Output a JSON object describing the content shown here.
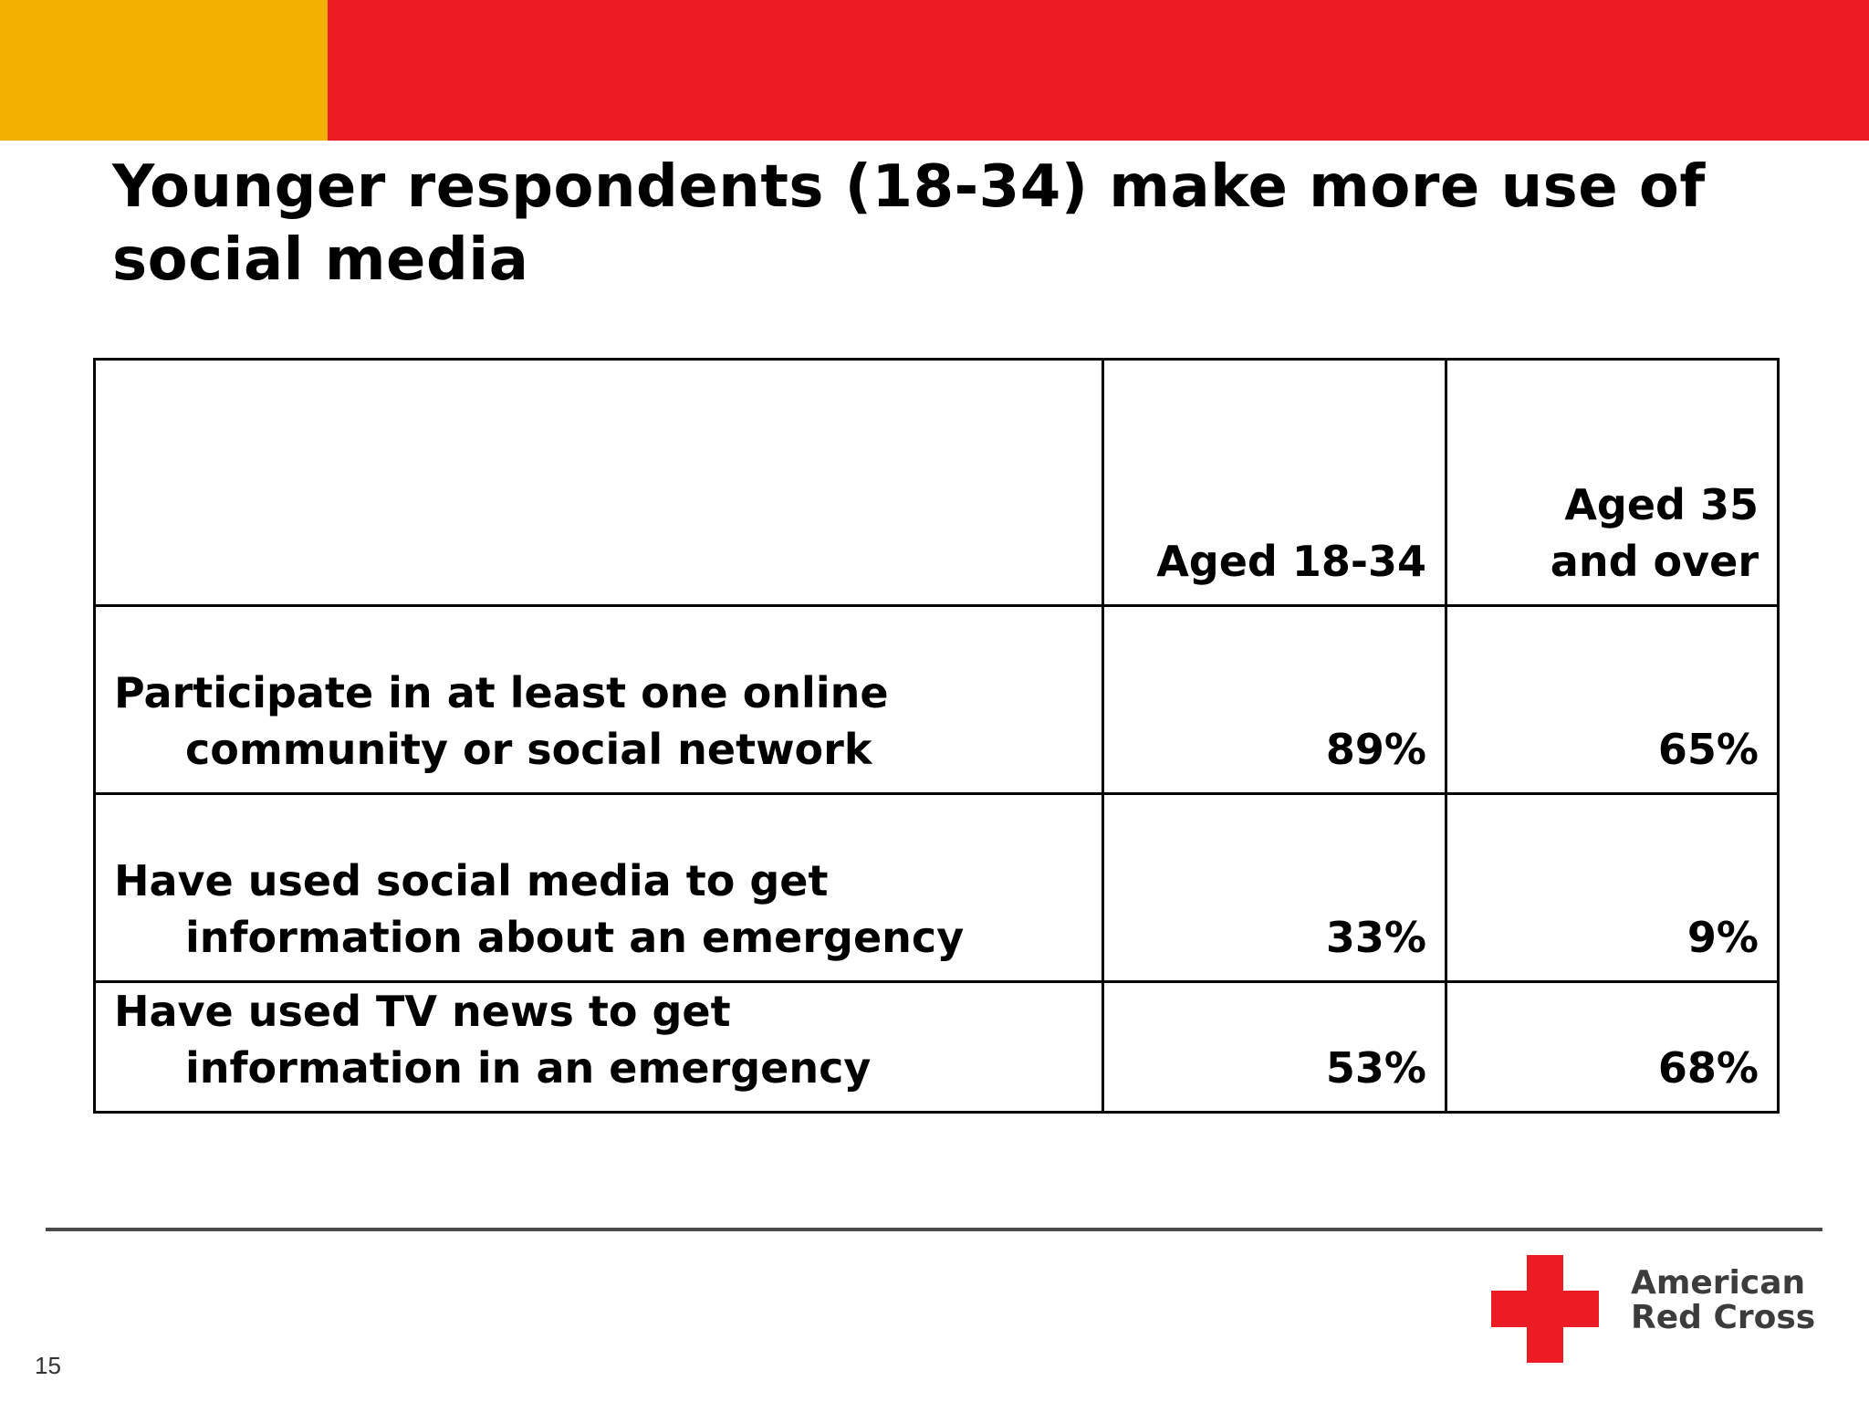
{
  "colors": {
    "accent_yellow": "#F4B000",
    "accent_red": "#EC1C24",
    "text": "#000000",
    "logo_text": "#3C3C3C"
  },
  "title": "Younger respondents (18-34) make more use of social media",
  "table": {
    "columns": [
      "",
      "Aged 18-34",
      "Aged 35 and over"
    ],
    "rows": [
      {
        "label_line1": "Participate in at least one online",
        "label_line2": "community or social network",
        "values": [
          "89%",
          "65%"
        ]
      },
      {
        "label_line1": "Have used social media to get",
        "label_line2": "information about an emergency",
        "values": [
          "33%",
          "9%"
        ]
      },
      {
        "label_line1": "Have used TV news to get",
        "label_line2": "information in an emergency",
        "values": [
          "53%",
          "68%"
        ]
      }
    ]
  },
  "page_number": "15",
  "logo": {
    "icon": "red-cross-icon",
    "line1": "American",
    "line2": "Red Cross"
  }
}
